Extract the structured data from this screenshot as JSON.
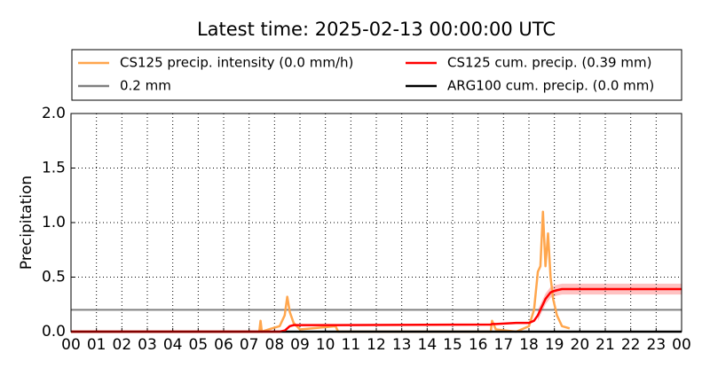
{
  "chart_data": {
    "type": "line",
    "title": "Latest time: 2025-02-13 00:00:00 UTC",
    "ylabel": "Precipitation",
    "x": [
      0,
      7.4,
      7.45,
      7.5,
      7.9,
      8.2,
      8.4,
      8.5,
      8.6,
      8.75,
      9.0,
      10.4,
      10.5,
      16.5,
      16.55,
      16.7,
      17.5,
      18.0,
      18.2,
      18.35,
      18.45,
      18.55,
      18.65,
      18.75,
      18.85,
      18.95,
      19.1,
      19.3,
      19.6,
      20.0,
      24
    ],
    "series": [
      {
        "name": "CS125 precip. intensity (0.0 mm/h)",
        "color": "#ffa64d",
        "values": [
          0,
          0,
          0.1,
          0,
          0.03,
          0.05,
          0.15,
          0.32,
          0.18,
          0.08,
          0.02,
          0.05,
          0,
          0,
          0.1,
          0.02,
          0,
          0.05,
          0.2,
          0.55,
          0.6,
          1.1,
          0.6,
          0.9,
          0.5,
          0.3,
          0.15,
          0.05,
          0.03,
          null,
          null
        ]
      },
      {
        "name": "CS125 cum. precip. (0.39 mm)",
        "color": "#ff0000",
        "values": [
          0,
          0,
          0,
          0,
          0,
          0,
          0.01,
          0.03,
          0.05,
          0.06,
          0.06,
          0.06,
          0.06,
          0.065,
          0.07,
          0.07,
          0.08,
          0.08,
          0.1,
          0.15,
          0.2,
          0.25,
          0.3,
          0.33,
          0.36,
          0.37,
          0.38,
          0.39,
          0.39,
          0.39,
          0.39
        ],
        "lower": [
          null,
          null,
          null,
          null,
          null,
          null,
          null,
          null,
          null,
          null,
          null,
          null,
          null,
          null,
          null,
          null,
          null,
          null,
          null,
          0.1,
          0.15,
          0.2,
          0.25,
          0.28,
          0.31,
          0.32,
          0.33,
          0.34,
          0.34,
          0.34,
          0.34
        ],
        "upper": [
          null,
          null,
          null,
          null,
          null,
          null,
          null,
          null,
          null,
          null,
          null,
          null,
          null,
          null,
          null,
          null,
          null,
          null,
          null,
          0.2,
          0.25,
          0.3,
          0.35,
          0.38,
          0.41,
          0.42,
          0.43,
          0.44,
          0.44,
          0.44,
          0.44
        ],
        "band_color": "#ff9999"
      },
      {
        "name": "ARG100 cum. precip. (0.0 mm)",
        "color": "#000000",
        "values": [
          0,
          0,
          0,
          0,
          0,
          0,
          0,
          0,
          0,
          0,
          0,
          0,
          0,
          0,
          0,
          0,
          0,
          0,
          0,
          0,
          0,
          0,
          0,
          0,
          0,
          0,
          0,
          0,
          0,
          0,
          0
        ]
      }
    ],
    "hline": {
      "name": "0.2 mm",
      "color": "#808080",
      "value": 0.2
    },
    "xlim": [
      0,
      24
    ],
    "xticks": [
      {
        "value": 0,
        "label": "00"
      },
      {
        "value": 1,
        "label": "01"
      },
      {
        "value": 2,
        "label": "02"
      },
      {
        "value": 3,
        "label": "03"
      },
      {
        "value": 4,
        "label": "04"
      },
      {
        "value": 5,
        "label": "05"
      },
      {
        "value": 6,
        "label": "06"
      },
      {
        "value": 7,
        "label": "07"
      },
      {
        "value": 8,
        "label": "08"
      },
      {
        "value": 9,
        "label": "09"
      },
      {
        "value": 10,
        "label": "10"
      },
      {
        "value": 11,
        "label": "11"
      },
      {
        "value": 12,
        "label": "12"
      },
      {
        "value": 13,
        "label": "13"
      },
      {
        "value": 14,
        "label": "14"
      },
      {
        "value": 15,
        "label": "15"
      },
      {
        "value": 16,
        "label": "16"
      },
      {
        "value": 17,
        "label": "17"
      },
      {
        "value": 18,
        "label": "18"
      },
      {
        "value": 19,
        "label": "19"
      },
      {
        "value": 20,
        "label": "20"
      },
      {
        "value": 21,
        "label": "21"
      },
      {
        "value": 22,
        "label": "22"
      },
      {
        "value": 23,
        "label": "23"
      },
      {
        "value": 24,
        "label": "00"
      }
    ],
    "ylim": [
      0,
      2
    ],
    "yticks": [
      {
        "value": 0,
        "label": "0.0"
      },
      {
        "value": 0.5,
        "label": "0.5"
      },
      {
        "value": 1,
        "label": "1.0"
      },
      {
        "value": 1.5,
        "label": "1.5"
      },
      {
        "value": 2,
        "label": "2.0"
      }
    ],
    "grid": true
  }
}
